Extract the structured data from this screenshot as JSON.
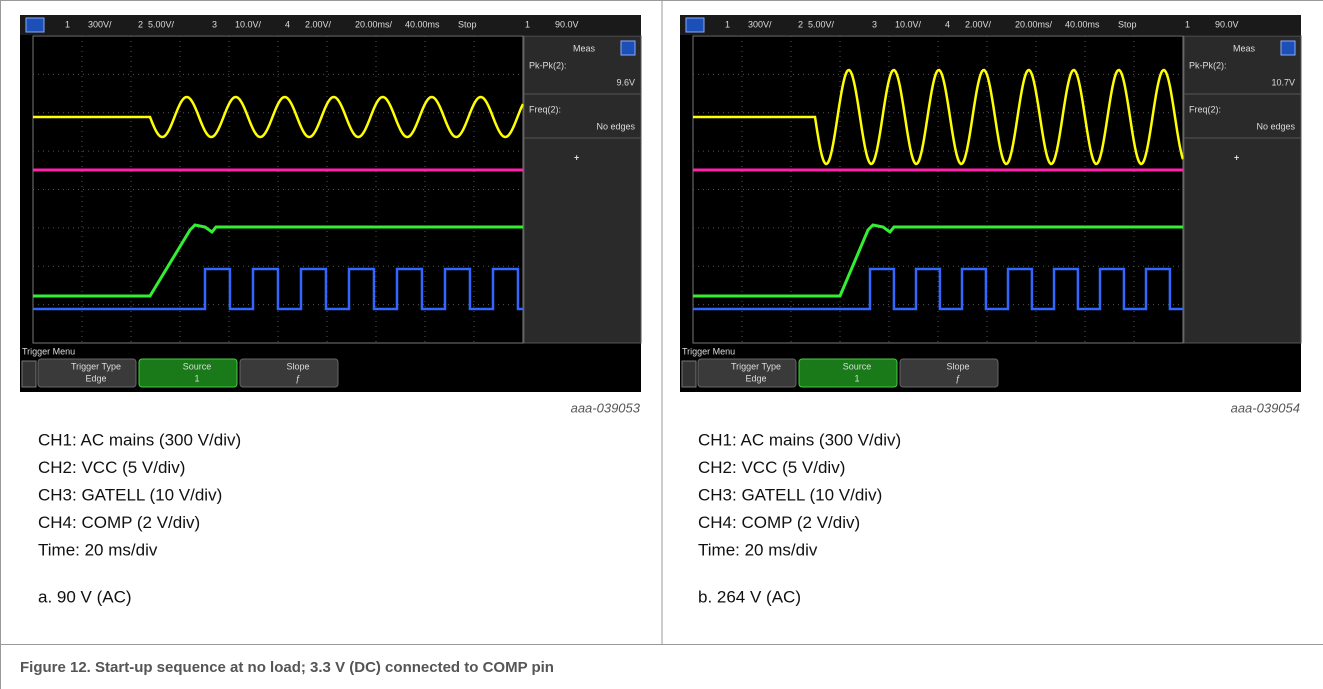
{
  "panels": [
    {
      "status": [
        "1",
        "300V/",
        "2",
        "5.00V/",
        "3",
        "10.0V/",
        "4",
        "2.00V/",
        "20.00ms/",
        "40.00ms",
        "Stop",
        "1",
        "90.0V"
      ],
      "meas": {
        "title": "Meas",
        "items": [
          {
            "label": "Pk-Pk(2):",
            "value": "9.6V"
          },
          {
            "label": "Freq(2):",
            "value": "No edges"
          }
        ],
        "add": "+"
      },
      "trigger": {
        "title": "Trigger Menu",
        "buttons": [
          {
            "label": "Trigger Type",
            "value": "Edge"
          },
          {
            "label": "Source",
            "value": "1"
          },
          {
            "label": "Slope",
            "value": "ƒ"
          }
        ]
      },
      "image_id": "aaa-039053",
      "notes": [
        "CH1: AC mains (300 V/div)",
        "CH2: VCC (5 V/div)",
        "CH3: GATELL (10 V/div)",
        "CH4: COMP (2 V/div)",
        "Time: 20 ms/div"
      ],
      "caption": "a. 90 V (AC)"
    },
    {
      "status": [
        "1",
        "300V/",
        "2",
        "5.00V/",
        "3",
        "10.0V/",
        "4",
        "2.00V/",
        "20.00ms/",
        "40.00ms",
        "Stop",
        "1",
        "90.0V"
      ],
      "meas": {
        "title": "Meas",
        "items": [
          {
            "label": "Pk-Pk(2):",
            "value": "10.7V"
          },
          {
            "label": "Freq(2):",
            "value": "No edges"
          }
        ],
        "add": "+"
      },
      "trigger": {
        "title": "Trigger Menu",
        "buttons": [
          {
            "label": "Trigger Type",
            "value": "Edge"
          },
          {
            "label": "Source",
            "value": "1"
          },
          {
            "label": "Slope",
            "value": "ƒ"
          }
        ]
      },
      "image_id": "aaa-039054",
      "notes": [
        "CH1: AC mains (300 V/div)",
        "CH2: VCC (5 V/div)",
        "CH3: GATELL (10 V/div)",
        "CH4: COMP (2 V/div)",
        "Time: 20 ms/div"
      ],
      "caption": "b. 264 V (AC)"
    }
  ],
  "figure_caption": "Figure 12. Start-up sequence at no load; 3.3 V (DC) connected to COMP pin"
}
